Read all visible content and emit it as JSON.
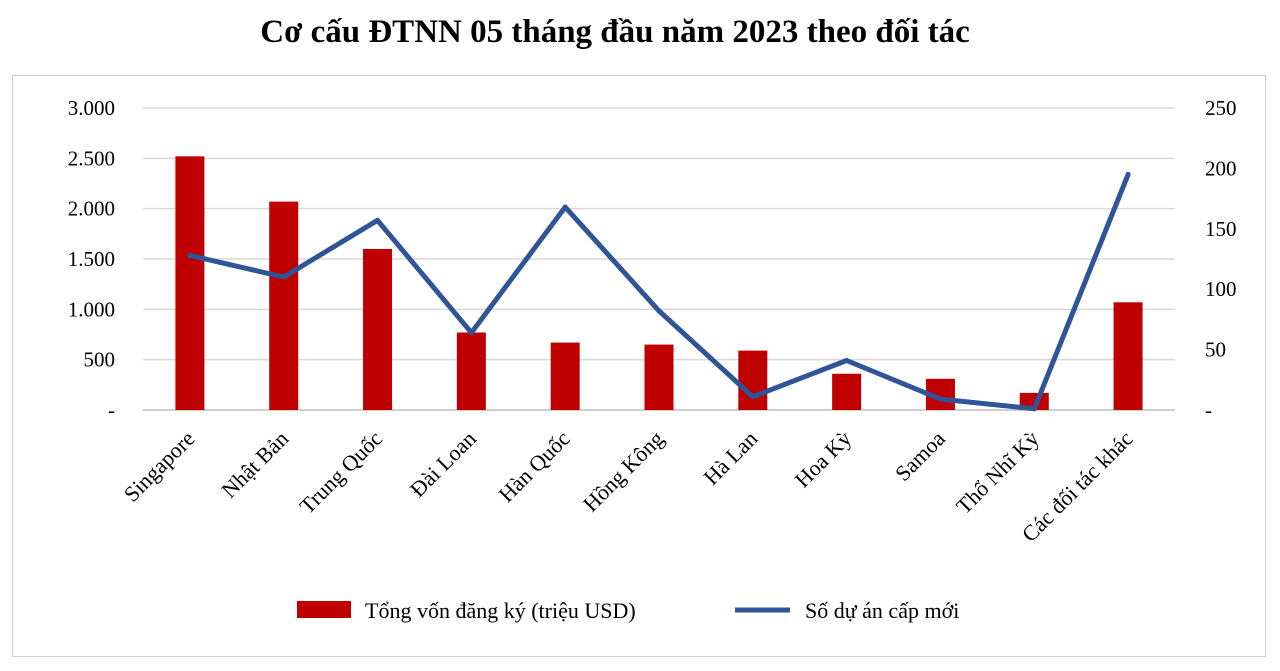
{
  "chart_data": {
    "type": "bar+line",
    "title": "Cơ cấu ĐTNN 05 tháng đầu năm 2023 theo đối tác",
    "categories": [
      "Singapore",
      "Nhật Bản",
      "Trung Quốc",
      "Đài Loan",
      "Hàn Quốc",
      "Hồng Kông",
      "Hà Lan",
      "Hoa Kỳ",
      "Samoa",
      "Thổ Nhĩ Kỳ",
      "Các đối tác khác"
    ],
    "series": [
      {
        "name": "Tổng vốn đăng ký (triệu USD)",
        "type": "bar",
        "axis": "left",
        "color": "#c00000",
        "values": [
          2520,
          2070,
          1600,
          770,
          670,
          650,
          590,
          360,
          310,
          170,
          1070
        ]
      },
      {
        "name": "Số dự án cấp mới",
        "type": "line",
        "axis": "right",
        "color": "#2f5597",
        "values": [
          128,
          110,
          157,
          64,
          168,
          82,
          11,
          41,
          9,
          1,
          195
        ]
      }
    ],
    "y_left": {
      "min": 0,
      "max": 3000,
      "ticks": [
        0,
        500,
        1000,
        1500,
        2000,
        2500,
        3000
      ],
      "tick_labels": [
        "-",
        "500",
        "1.000",
        "1.500",
        "2.000",
        "2.500",
        "3.000"
      ]
    },
    "y_right": {
      "min": 0,
      "max": 250,
      "ticks": [
        0,
        50,
        100,
        150,
        200,
        250
      ],
      "tick_labels": [
        "-",
        "50",
        "100",
        "150",
        "200",
        "250"
      ]
    },
    "grid": true,
    "legend_position": "bottom"
  }
}
